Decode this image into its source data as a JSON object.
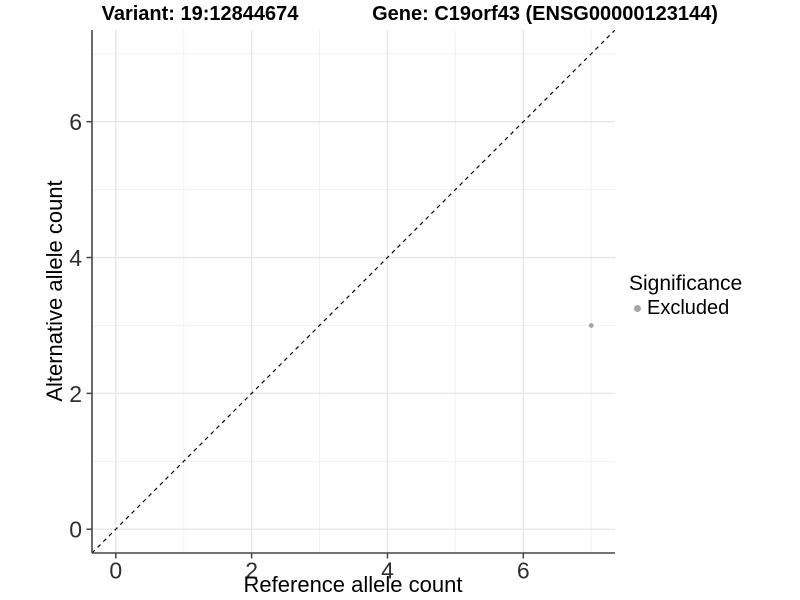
{
  "chart_data": {
    "type": "scatter",
    "titles": {
      "left": "Variant: 19:12844674",
      "right": "Gene: C19orf43 (ENSG00000123144)"
    },
    "xlabel": "Reference allele count",
    "ylabel": "Alternative allele count",
    "xlim": [
      -0.35,
      7.35
    ],
    "ylim": [
      -0.35,
      7.35
    ],
    "xticks": [
      0,
      2,
      4,
      6
    ],
    "yticks": [
      0,
      2,
      4,
      6
    ],
    "x_minor_ticks": [
      1,
      3,
      5,
      7
    ],
    "y_minor_ticks": [
      1,
      3,
      5,
      7
    ],
    "grid": "major and minor gridlines, white panel background",
    "reference_line": {
      "type": "identity",
      "slope": 1,
      "intercept": 0,
      "linestyle": "dashed",
      "color": "#000000"
    },
    "series": [
      {
        "name": "Excluded",
        "color": "#a6a6a6",
        "points": [
          {
            "x": 7,
            "y": 3
          }
        ]
      }
    ],
    "legend": {
      "title": "Significance",
      "position": "right",
      "items": [
        {
          "label": "Excluded",
          "color": "#a6a6a6"
        }
      ]
    },
    "colors": {
      "background": "#ffffff",
      "axis_line": "#454545",
      "tick_label": "#2e2e2e",
      "grid_major": "#e6e6e6",
      "grid_minor": "#f1f1f1",
      "title_text": "#000000"
    }
  }
}
